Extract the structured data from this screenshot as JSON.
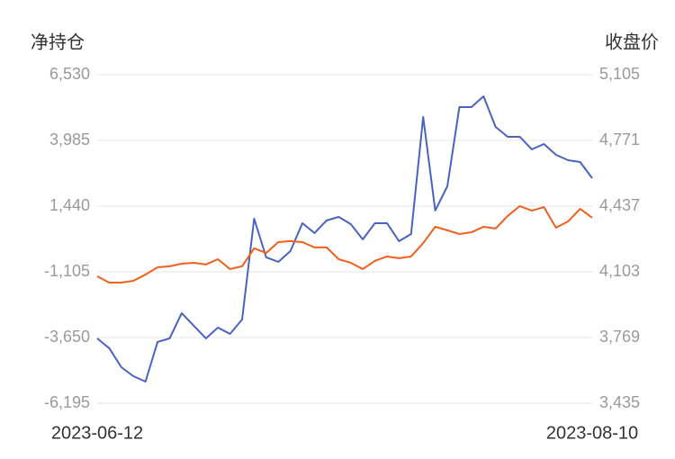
{
  "chart_data": {
    "type": "line",
    "y_axis_title": "净持仓",
    "y2_axis_title": "收盘价",
    "categories": [
      "2023-06-12",
      null,
      null,
      null,
      null,
      null,
      null,
      null,
      null,
      null,
      null,
      null,
      null,
      null,
      null,
      null,
      null,
      null,
      null,
      null,
      null,
      null,
      null,
      null,
      null,
      null,
      null,
      null,
      null,
      null,
      null,
      null,
      null,
      null,
      null,
      null,
      null,
      null,
      null,
      null,
      null,
      "2023-08-10"
    ],
    "series": [
      {
        "name": "净持仓",
        "color": "#4a63c0",
        "axis": "y",
        "values": [
          -3684,
          -4067,
          -4800,
          -5149,
          -5358,
          -3823,
          -3684,
          -2708,
          -3196,
          -3684,
          -3266,
          -3510,
          -2952,
          952,
          -547,
          -721,
          -303,
          778,
          395,
          883,
          1022,
          743,
          151,
          778,
          778,
          81,
          360,
          4892,
          1266,
          2207,
          5275,
          5275,
          5693,
          4508,
          4125,
          4125,
          3637,
          3846,
          3428,
          3218,
          3149,
          2521
        ]
      },
      {
        "name": "收盘价",
        "color": "#f0601c",
        "axis": "y2",
        "values": [
          4080,
          4048,
          4048,
          4057,
          4089,
          4126,
          4131,
          4144,
          4149,
          4140,
          4167,
          4117,
          4131,
          4222,
          4199,
          4254,
          4259,
          4254,
          4227,
          4227,
          4167,
          4149,
          4117,
          4158,
          4181,
          4172,
          4181,
          4249,
          4332,
          4314,
          4295,
          4304,
          4332,
          4323,
          4387,
          4437,
          4414,
          4432,
          4327,
          4359,
          4423,
          4378
        ]
      }
    ],
    "ylim": [
      -6195,
      6530
    ],
    "yticks": [
      {
        "value": 6530,
        "label": "6,530"
      },
      {
        "value": 3985,
        "label": "3,985"
      },
      {
        "value": 1440,
        "label": "1,440"
      },
      {
        "value": -1105,
        "label": "-1,105"
      },
      {
        "value": -3650,
        "label": "-3,650"
      },
      {
        "value": -6195,
        "label": "-6,195"
      }
    ],
    "y2lim": [
      3435,
      5105
    ],
    "y2ticks": [
      {
        "value": 5105,
        "label": "5,105"
      },
      {
        "value": 4771,
        "label": "4,771"
      },
      {
        "value": 4437,
        "label": "4,437"
      },
      {
        "value": 4103,
        "label": "4,103"
      },
      {
        "value": 3769,
        "label": "3,769"
      },
      {
        "value": 3435,
        "label": "3,435"
      }
    ],
    "grid": true
  }
}
